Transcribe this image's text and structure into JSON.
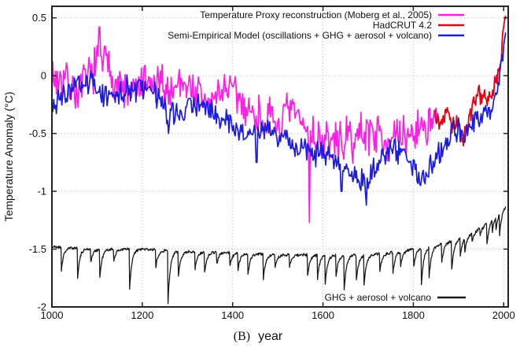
{
  "figure": {
    "caption_tag": "(B)",
    "caption_label": "year"
  },
  "colors": {
    "proxy_magenta": "#ff1fe4",
    "hadcrut_red": "#e80011",
    "model_blue": "#1c1ce0",
    "forcing_black": "#1a1a1a",
    "grid": "#b9b9b9",
    "border": "#222222"
  },
  "chart_data": {
    "type": "line",
    "title": "",
    "xlabel": "year",
    "ylabel": "Temperature Anomaly (°C)",
    "xlim": [
      1000,
      2010
    ],
    "ylim": [
      -2,
      0.6
    ],
    "xticks": [
      1000,
      1200,
      1400,
      1600,
      1800,
      2000
    ],
    "yticks": [
      0.5,
      0,
      -0.5,
      -1,
      -1.5,
      -2
    ],
    "ytick_labels": [
      "0.5",
      "0",
      "-0.5",
      "-1",
      "-1.5",
      "-2"
    ],
    "xtick_labels": [
      "1000",
      "1200",
      "1400",
      "1600",
      "1800",
      "2000"
    ],
    "grid": "dotted",
    "grid_x": [
      1200,
      1400,
      1600,
      1800,
      2000
    ],
    "grid_y": [
      0.5,
      0,
      -0.5,
      -1,
      -1.5
    ],
    "legend_position": "top-right-inside",
    "legend": [
      {
        "label": "Temperature Proxy reconstruction (Moberg et al., 2005)",
        "color": "#ff1fe4",
        "placement": "top"
      },
      {
        "label": "HadCRUT 4.2",
        "color": "#e80011",
        "placement": "top"
      },
      {
        "label": "Semi-Empirical Model (oscillations + GHG + aerosol + volcano)",
        "color": "#1c1ce0",
        "placement": "top"
      },
      {
        "label": "GHG + aerosol + volcano",
        "color": "#1a1a1a",
        "placement": "bottom"
      }
    ],
    "series": [
      {
        "name": "Temperature Proxy reconstruction (Moberg et al., 2005)",
        "kind": "noisy",
        "color": "#ff1fe4",
        "width": 1.7,
        "range": [
          1000,
          1856
        ],
        "step": 2,
        "noise": 0.16,
        "slow": 0.06,
        "phase": 1.2,
        "seed": 7,
        "anchors": [
          [
            1000,
            -0.08
          ],
          [
            1030,
            0.0
          ],
          [
            1060,
            -0.08
          ],
          [
            1090,
            0.05
          ],
          [
            1110,
            0.1
          ],
          [
            1140,
            -0.08
          ],
          [
            1170,
            -0.15
          ],
          [
            1200,
            -0.02
          ],
          [
            1240,
            -0.12
          ],
          [
            1260,
            -0.2
          ],
          [
            1290,
            -0.06
          ],
          [
            1320,
            -0.1
          ],
          [
            1350,
            -0.2
          ],
          [
            1380,
            -0.12
          ],
          [
            1410,
            -0.25
          ],
          [
            1440,
            -0.32
          ],
          [
            1470,
            -0.3
          ],
          [
            1500,
            -0.4
          ],
          [
            1530,
            -0.36
          ],
          [
            1560,
            -0.5
          ],
          [
            1580,
            -0.52
          ],
          [
            1610,
            -0.5
          ],
          [
            1640,
            -0.55
          ],
          [
            1670,
            -0.6
          ],
          [
            1700,
            -0.52
          ],
          [
            1730,
            -0.48
          ],
          [
            1760,
            -0.5
          ],
          [
            1790,
            -0.52
          ],
          [
            1820,
            -0.5
          ],
          [
            1856,
            -0.42
          ]
        ],
        "spikes": [
          [
            1105,
            0.42
          ],
          [
            1570,
            -1.27
          ]
        ]
      },
      {
        "name": "HadCRUT 4.2",
        "kind": "noisy",
        "color": "#e80011",
        "width": 1.8,
        "range": [
          1848,
          2004
        ],
        "step": 1.5,
        "noise": 0.06,
        "slow": 0.03,
        "phase": 0.5,
        "seed": 13,
        "anchors": [
          [
            1848,
            -0.32
          ],
          [
            1858,
            -0.45
          ],
          [
            1865,
            -0.38
          ],
          [
            1872,
            -0.3
          ],
          [
            1878,
            -0.25
          ],
          [
            1885,
            -0.42
          ],
          [
            1895,
            -0.38
          ],
          [
            1903,
            -0.45
          ],
          [
            1910,
            -0.52
          ],
          [
            1918,
            -0.42
          ],
          [
            1925,
            -0.32
          ],
          [
            1935,
            -0.22
          ],
          [
            1942,
            -0.12
          ],
          [
            1947,
            -0.18
          ],
          [
            1952,
            -0.22
          ],
          [
            1958,
            -0.18
          ],
          [
            1964,
            -0.28
          ],
          [
            1970,
            -0.18
          ],
          [
            1976,
            -0.22
          ],
          [
            1981,
            -0.08
          ],
          [
            1987,
            -0.02
          ],
          [
            1992,
            0.05
          ],
          [
            1996,
            0.2
          ],
          [
            1999,
            0.35
          ],
          [
            2001,
            0.45
          ],
          [
            2004,
            0.5
          ]
        ],
        "spikes": []
      },
      {
        "name": "Semi-Empirical Model (oscillations + GHG + aerosol + volcano)",
        "kind": "noisy",
        "color": "#1c1ce0",
        "width": 1.7,
        "range": [
          1000,
          2004
        ],
        "step": 2,
        "noise": 0.1,
        "slow": 0.05,
        "phase": 4.0,
        "seed": 3,
        "anchors": [
          [
            1000,
            -0.2
          ],
          [
            1040,
            -0.16
          ],
          [
            1080,
            -0.12
          ],
          [
            1120,
            -0.12
          ],
          [
            1160,
            -0.1
          ],
          [
            1200,
            -0.16
          ],
          [
            1240,
            -0.2
          ],
          [
            1258,
            -0.34
          ],
          [
            1280,
            -0.26
          ],
          [
            1320,
            -0.28
          ],
          [
            1360,
            -0.32
          ],
          [
            1400,
            -0.4
          ],
          [
            1440,
            -0.48
          ],
          [
            1480,
            -0.52
          ],
          [
            1520,
            -0.56
          ],
          [
            1560,
            -0.6
          ],
          [
            1600,
            -0.7
          ],
          [
            1640,
            -0.8
          ],
          [
            1680,
            -0.88
          ],
          [
            1700,
            -0.85
          ],
          [
            1730,
            -0.72
          ],
          [
            1760,
            -0.7
          ],
          [
            1790,
            -0.72
          ],
          [
            1815,
            -0.82
          ],
          [
            1840,
            -0.72
          ],
          [
            1870,
            -0.6
          ],
          [
            1900,
            -0.52
          ],
          [
            1915,
            -0.55
          ],
          [
            1935,
            -0.4
          ],
          [
            1955,
            -0.32
          ],
          [
            1975,
            -0.25
          ],
          [
            1990,
            -0.05
          ],
          [
            2000,
            0.25
          ],
          [
            2004,
            0.4
          ]
        ],
        "spikes": [
          [
            1258,
            -0.5
          ],
          [
            1453,
            -0.75
          ],
          [
            1641,
            -1.0
          ],
          [
            1696,
            -1.12
          ],
          [
            1816,
            -0.95
          ]
        ]
      },
      {
        "name": "GHG + aerosol + volcano",
        "kind": "forcing",
        "color": "#1a1a1a",
        "width": 1.3,
        "range": [
          1000,
          2004
        ],
        "step": 1,
        "noise": 0.012,
        "seed": 21,
        "recovery_tau": 5,
        "baseline": [
          [
            1000,
            -1.48
          ],
          [
            1100,
            -1.5
          ],
          [
            1200,
            -1.5
          ],
          [
            1300,
            -1.52
          ],
          [
            1400,
            -1.53
          ],
          [
            1500,
            -1.55
          ],
          [
            1600,
            -1.55
          ],
          [
            1700,
            -1.55
          ],
          [
            1750,
            -1.53
          ],
          [
            1800,
            -1.5
          ],
          [
            1850,
            -1.47
          ],
          [
            1900,
            -1.41
          ],
          [
            1925,
            -1.37
          ],
          [
            1950,
            -1.31
          ],
          [
            1965,
            -1.27
          ],
          [
            1980,
            -1.21
          ],
          [
            1990,
            -1.17
          ],
          [
            2004,
            -1.12
          ]
        ],
        "volcanoes": [
          [
            1021,
            0.2
          ],
          [
            1057,
            0.25
          ],
          [
            1086,
            0.12
          ],
          [
            1106,
            0.25
          ],
          [
            1137,
            0.1
          ],
          [
            1172,
            0.35
          ],
          [
            1230,
            0.15
          ],
          [
            1257,
            0.45
          ],
          [
            1280,
            0.22
          ],
          [
            1317,
            0.15
          ],
          [
            1338,
            0.18
          ],
          [
            1365,
            0.1
          ],
          [
            1394,
            0.12
          ],
          [
            1412,
            0.15
          ],
          [
            1434,
            0.18
          ],
          [
            1468,
            0.22
          ],
          [
            1494,
            0.1
          ],
          [
            1526,
            0.1
          ],
          [
            1566,
            0.18
          ],
          [
            1588,
            0.2
          ],
          [
            1605,
            0.25
          ],
          [
            1629,
            0.18
          ],
          [
            1647,
            0.3
          ],
          [
            1674,
            0.22
          ],
          [
            1691,
            0.25
          ],
          [
            1726,
            0.15
          ],
          [
            1755,
            0.18
          ],
          [
            1772,
            0.12
          ],
          [
            1801,
            0.15
          ],
          [
            1818,
            0.32
          ],
          [
            1835,
            0.25
          ],
          [
            1863,
            0.15
          ],
          [
            1885,
            0.25
          ],
          [
            1904,
            0.15
          ],
          [
            1914,
            0.12
          ],
          [
            1930,
            0.08
          ],
          [
            1948,
            0.06
          ],
          [
            1963,
            0.18
          ],
          [
            1975,
            0.1
          ],
          [
            1983,
            0.12
          ],
          [
            1991,
            0.18
          ]
        ]
      }
    ]
  }
}
